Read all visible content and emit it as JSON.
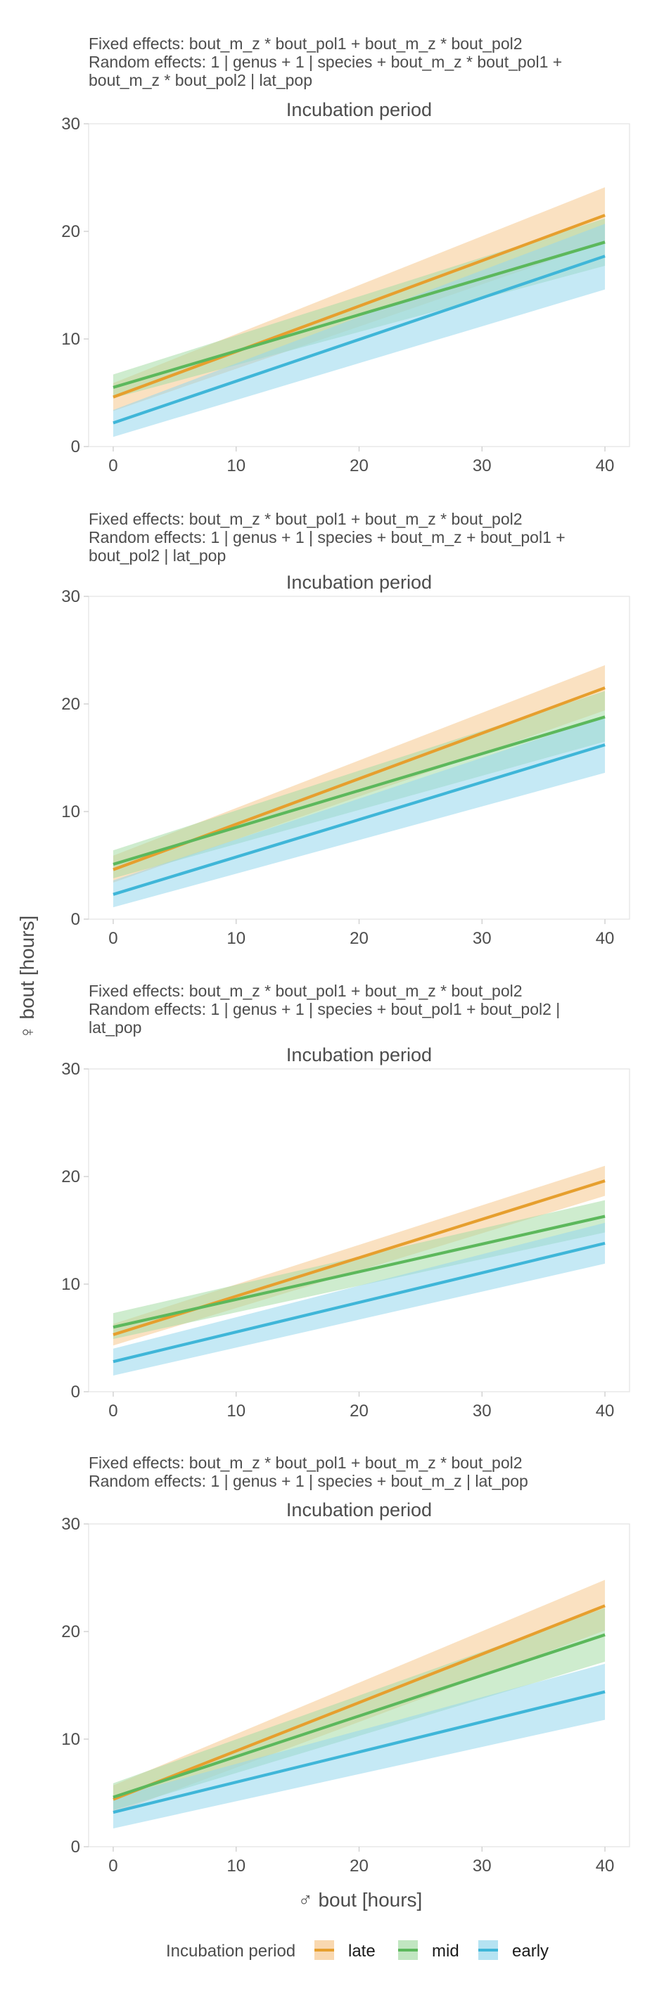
{
  "colors": {
    "late": "#E69F2E",
    "mid": "#5CB85C",
    "early": "#3FB6D8",
    "late_band": "#F6C88E",
    "mid_band": "#A6DCA6",
    "early_band": "#96D7EC",
    "grid": "#e5e5e5"
  },
  "y_axis_label": "♀ bout [hours]",
  "x_axis_label": "♂ bout [hours]",
  "legend": {
    "title": "Incubation period",
    "items": [
      {
        "key": "late",
        "label": "late"
      },
      {
        "key": "mid",
        "label": "mid"
      },
      {
        "key": "early",
        "label": "early"
      }
    ]
  },
  "chart_data": [
    {
      "type": "line",
      "title": "Incubation period",
      "note_lines": [
        "Fixed effects: bout_m_z * bout_pol1 + bout_m_z * bout_pol2",
        "Random effects: 1 | genus + 1 | species + bout_m_z * bout_pol1 +",
        "bout_m_z * bout_pol2 | lat_pop"
      ],
      "xlim": [
        -2,
        42
      ],
      "ylim": [
        0,
        30
      ],
      "xticks": [
        0,
        10,
        20,
        30,
        40
      ],
      "yticks": [
        0,
        10,
        20,
        30
      ],
      "grid": false,
      "series": [
        {
          "name": "late",
          "x": [
            0,
            40
          ],
          "y": [
            4.6,
            21.5
          ],
          "lower": [
            3.3,
            19.0
          ],
          "upper": [
            5.9,
            24.1
          ]
        },
        {
          "name": "mid",
          "x": [
            0,
            40
          ],
          "y": [
            5.5,
            19.0
          ],
          "lower": [
            4.5,
            16.8
          ],
          "upper": [
            6.7,
            21.2
          ]
        },
        {
          "name": "early",
          "x": [
            0,
            40
          ],
          "y": [
            2.2,
            17.7
          ],
          "lower": [
            0.9,
            14.6
          ],
          "upper": [
            3.4,
            20.7
          ]
        }
      ]
    },
    {
      "type": "line",
      "title": "Incubation period",
      "note_lines": [
        "Fixed effects: bout_m_z * bout_pol1 + bout_m_z * bout_pol2",
        "Random effects: 1 | genus + 1 | species + bout_m_z + bout_pol1 +",
        "bout_pol2 | lat_pop"
      ],
      "xlim": [
        -2,
        42
      ],
      "ylim": [
        0,
        30
      ],
      "xticks": [
        0,
        10,
        20,
        30,
        40
      ],
      "yticks": [
        0,
        10,
        20,
        30
      ],
      "grid": false,
      "series": [
        {
          "name": "late",
          "x": [
            0,
            40
          ],
          "y": [
            4.6,
            21.5
          ],
          "lower": [
            3.4,
            19.4
          ],
          "upper": [
            5.9,
            23.6
          ]
        },
        {
          "name": "mid",
          "x": [
            0,
            40
          ],
          "y": [
            5.1,
            18.8
          ],
          "lower": [
            3.8,
            16.5
          ],
          "upper": [
            6.4,
            21.2
          ]
        },
        {
          "name": "early",
          "x": [
            0,
            40
          ],
          "y": [
            2.3,
            16.2
          ],
          "lower": [
            1.1,
            13.6
          ],
          "upper": [
            3.6,
            18.8
          ]
        }
      ]
    },
    {
      "type": "line",
      "title": "Incubation period",
      "note_lines": [
        "Fixed effects: bout_m_z * bout_pol1 + bout_m_z * bout_pol2",
        "Random effects: 1 | genus + 1 | species + bout_pol1 + bout_pol2 |",
        "lat_pop"
      ],
      "xlim": [
        -2,
        42
      ],
      "ylim": [
        0,
        30
      ],
      "xticks": [
        0,
        10,
        20,
        30,
        40
      ],
      "yticks": [
        0,
        10,
        20,
        30
      ],
      "grid": false,
      "series": [
        {
          "name": "late",
          "x": [
            0,
            40
          ],
          "y": [
            5.3,
            19.6
          ],
          "lower": [
            4.3,
            18.2
          ],
          "upper": [
            6.3,
            21.0
          ]
        },
        {
          "name": "mid",
          "x": [
            0,
            40
          ],
          "y": [
            6.0,
            16.3
          ],
          "lower": [
            4.9,
            14.8
          ],
          "upper": [
            7.3,
            17.8
          ]
        },
        {
          "name": "early",
          "x": [
            0,
            40
          ],
          "y": [
            2.8,
            13.8
          ],
          "lower": [
            1.5,
            11.9
          ],
          "upper": [
            4.0,
            15.7
          ]
        }
      ]
    },
    {
      "type": "line",
      "title": "Incubation period",
      "note_lines": [
        "Fixed effects: bout_m_z * bout_pol1 + bout_m_z * bout_pol2",
        "Random effects: 1 | genus + 1 | species + bout_m_z | lat_pop"
      ],
      "xlim": [
        -2,
        42
      ],
      "ylim": [
        0,
        30
      ],
      "xticks": [
        0,
        10,
        20,
        30,
        40
      ],
      "yticks": [
        0,
        10,
        20,
        30
      ],
      "grid": false,
      "series": [
        {
          "name": "late",
          "x": [
            0,
            40
          ],
          "y": [
            4.4,
            22.4
          ],
          "lower": [
            3.1,
            20.1
          ],
          "upper": [
            5.7,
            24.8
          ]
        },
        {
          "name": "mid",
          "x": [
            0,
            40
          ],
          "y": [
            4.6,
            19.7
          ],
          "lower": [
            3.4,
            17.2
          ],
          "upper": [
            5.9,
            22.2
          ]
        },
        {
          "name": "early",
          "x": [
            0,
            40
          ],
          "y": [
            3.2,
            14.4
          ],
          "lower": [
            1.7,
            11.8
          ],
          "upper": [
            4.6,
            17.0
          ]
        }
      ]
    }
  ]
}
